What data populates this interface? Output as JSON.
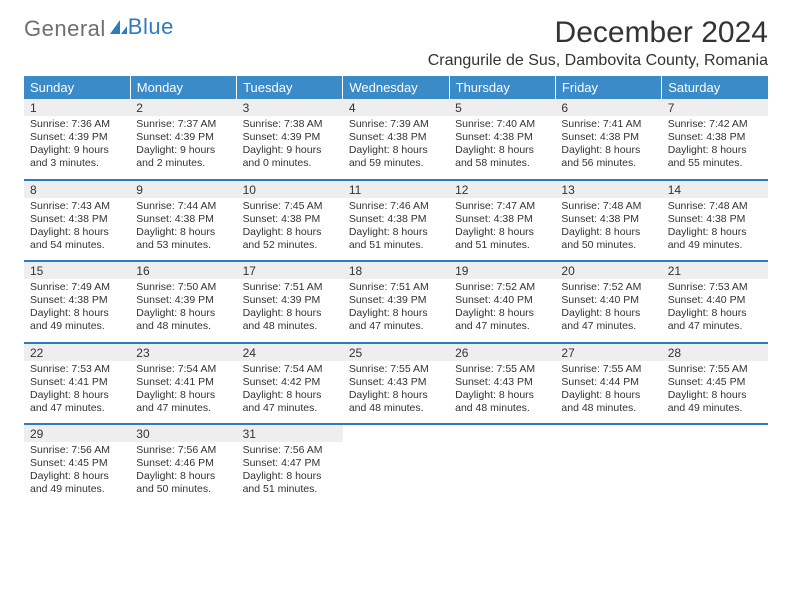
{
  "brand": {
    "part1": "General",
    "part2": "Blue"
  },
  "title": "December 2024",
  "subtitle": "Crangurile de Sus, Dambovita County, Romania",
  "day_headers": [
    "Sunday",
    "Monday",
    "Tuesday",
    "Wednesday",
    "Thursday",
    "Friday",
    "Saturday"
  ],
  "colors": {
    "header_bg": "#3b8bc8",
    "header_text": "#ffffff",
    "daynum_bg": "#eeeeee",
    "separator": "#2e7cbf",
    "text": "#333333",
    "logo_gray": "#6e6e6e",
    "logo_blue": "#2e7cbf",
    "background": "#ffffff"
  },
  "typography": {
    "title_size_pt": 22,
    "subtitle_size_pt": 12,
    "header_size_pt": 10,
    "daynum_size_pt": 9,
    "body_size_pt": 8
  },
  "weeks": [
    [
      {
        "num": "1",
        "sunrise": "Sunrise: 7:36 AM",
        "sunset": "Sunset: 4:39 PM",
        "day1": "Daylight: 9 hours",
        "day2": "and 3 minutes."
      },
      {
        "num": "2",
        "sunrise": "Sunrise: 7:37 AM",
        "sunset": "Sunset: 4:39 PM",
        "day1": "Daylight: 9 hours",
        "day2": "and 2 minutes."
      },
      {
        "num": "3",
        "sunrise": "Sunrise: 7:38 AM",
        "sunset": "Sunset: 4:39 PM",
        "day1": "Daylight: 9 hours",
        "day2": "and 0 minutes."
      },
      {
        "num": "4",
        "sunrise": "Sunrise: 7:39 AM",
        "sunset": "Sunset: 4:38 PM",
        "day1": "Daylight: 8 hours",
        "day2": "and 59 minutes."
      },
      {
        "num": "5",
        "sunrise": "Sunrise: 7:40 AM",
        "sunset": "Sunset: 4:38 PM",
        "day1": "Daylight: 8 hours",
        "day2": "and 58 minutes."
      },
      {
        "num": "6",
        "sunrise": "Sunrise: 7:41 AM",
        "sunset": "Sunset: 4:38 PM",
        "day1": "Daylight: 8 hours",
        "day2": "and 56 minutes."
      },
      {
        "num": "7",
        "sunrise": "Sunrise: 7:42 AM",
        "sunset": "Sunset: 4:38 PM",
        "day1": "Daylight: 8 hours",
        "day2": "and 55 minutes."
      }
    ],
    [
      {
        "num": "8",
        "sunrise": "Sunrise: 7:43 AM",
        "sunset": "Sunset: 4:38 PM",
        "day1": "Daylight: 8 hours",
        "day2": "and 54 minutes."
      },
      {
        "num": "9",
        "sunrise": "Sunrise: 7:44 AM",
        "sunset": "Sunset: 4:38 PM",
        "day1": "Daylight: 8 hours",
        "day2": "and 53 minutes."
      },
      {
        "num": "10",
        "sunrise": "Sunrise: 7:45 AM",
        "sunset": "Sunset: 4:38 PM",
        "day1": "Daylight: 8 hours",
        "day2": "and 52 minutes."
      },
      {
        "num": "11",
        "sunrise": "Sunrise: 7:46 AM",
        "sunset": "Sunset: 4:38 PM",
        "day1": "Daylight: 8 hours",
        "day2": "and 51 minutes."
      },
      {
        "num": "12",
        "sunrise": "Sunrise: 7:47 AM",
        "sunset": "Sunset: 4:38 PM",
        "day1": "Daylight: 8 hours",
        "day2": "and 51 minutes."
      },
      {
        "num": "13",
        "sunrise": "Sunrise: 7:48 AM",
        "sunset": "Sunset: 4:38 PM",
        "day1": "Daylight: 8 hours",
        "day2": "and 50 minutes."
      },
      {
        "num": "14",
        "sunrise": "Sunrise: 7:48 AM",
        "sunset": "Sunset: 4:38 PM",
        "day1": "Daylight: 8 hours",
        "day2": "and 49 minutes."
      }
    ],
    [
      {
        "num": "15",
        "sunrise": "Sunrise: 7:49 AM",
        "sunset": "Sunset: 4:38 PM",
        "day1": "Daylight: 8 hours",
        "day2": "and 49 minutes."
      },
      {
        "num": "16",
        "sunrise": "Sunrise: 7:50 AM",
        "sunset": "Sunset: 4:39 PM",
        "day1": "Daylight: 8 hours",
        "day2": "and 48 minutes."
      },
      {
        "num": "17",
        "sunrise": "Sunrise: 7:51 AM",
        "sunset": "Sunset: 4:39 PM",
        "day1": "Daylight: 8 hours",
        "day2": "and 48 minutes."
      },
      {
        "num": "18",
        "sunrise": "Sunrise: 7:51 AM",
        "sunset": "Sunset: 4:39 PM",
        "day1": "Daylight: 8 hours",
        "day2": "and 47 minutes."
      },
      {
        "num": "19",
        "sunrise": "Sunrise: 7:52 AM",
        "sunset": "Sunset: 4:40 PM",
        "day1": "Daylight: 8 hours",
        "day2": "and 47 minutes."
      },
      {
        "num": "20",
        "sunrise": "Sunrise: 7:52 AM",
        "sunset": "Sunset: 4:40 PM",
        "day1": "Daylight: 8 hours",
        "day2": "and 47 minutes."
      },
      {
        "num": "21",
        "sunrise": "Sunrise: 7:53 AM",
        "sunset": "Sunset: 4:40 PM",
        "day1": "Daylight: 8 hours",
        "day2": "and 47 minutes."
      }
    ],
    [
      {
        "num": "22",
        "sunrise": "Sunrise: 7:53 AM",
        "sunset": "Sunset: 4:41 PM",
        "day1": "Daylight: 8 hours",
        "day2": "and 47 minutes."
      },
      {
        "num": "23",
        "sunrise": "Sunrise: 7:54 AM",
        "sunset": "Sunset: 4:41 PM",
        "day1": "Daylight: 8 hours",
        "day2": "and 47 minutes."
      },
      {
        "num": "24",
        "sunrise": "Sunrise: 7:54 AM",
        "sunset": "Sunset: 4:42 PM",
        "day1": "Daylight: 8 hours",
        "day2": "and 47 minutes."
      },
      {
        "num": "25",
        "sunrise": "Sunrise: 7:55 AM",
        "sunset": "Sunset: 4:43 PM",
        "day1": "Daylight: 8 hours",
        "day2": "and 48 minutes."
      },
      {
        "num": "26",
        "sunrise": "Sunrise: 7:55 AM",
        "sunset": "Sunset: 4:43 PM",
        "day1": "Daylight: 8 hours",
        "day2": "and 48 minutes."
      },
      {
        "num": "27",
        "sunrise": "Sunrise: 7:55 AM",
        "sunset": "Sunset: 4:44 PM",
        "day1": "Daylight: 8 hours",
        "day2": "and 48 minutes."
      },
      {
        "num": "28",
        "sunrise": "Sunrise: 7:55 AM",
        "sunset": "Sunset: 4:45 PM",
        "day1": "Daylight: 8 hours",
        "day2": "and 49 minutes."
      }
    ],
    [
      {
        "num": "29",
        "sunrise": "Sunrise: 7:56 AM",
        "sunset": "Sunset: 4:45 PM",
        "day1": "Daylight: 8 hours",
        "day2": "and 49 minutes."
      },
      {
        "num": "30",
        "sunrise": "Sunrise: 7:56 AM",
        "sunset": "Sunset: 4:46 PM",
        "day1": "Daylight: 8 hours",
        "day2": "and 50 minutes."
      },
      {
        "num": "31",
        "sunrise": "Sunrise: 7:56 AM",
        "sunset": "Sunset: 4:47 PM",
        "day1": "Daylight: 8 hours",
        "day2": "and 51 minutes."
      },
      null,
      null,
      null,
      null
    ]
  ]
}
